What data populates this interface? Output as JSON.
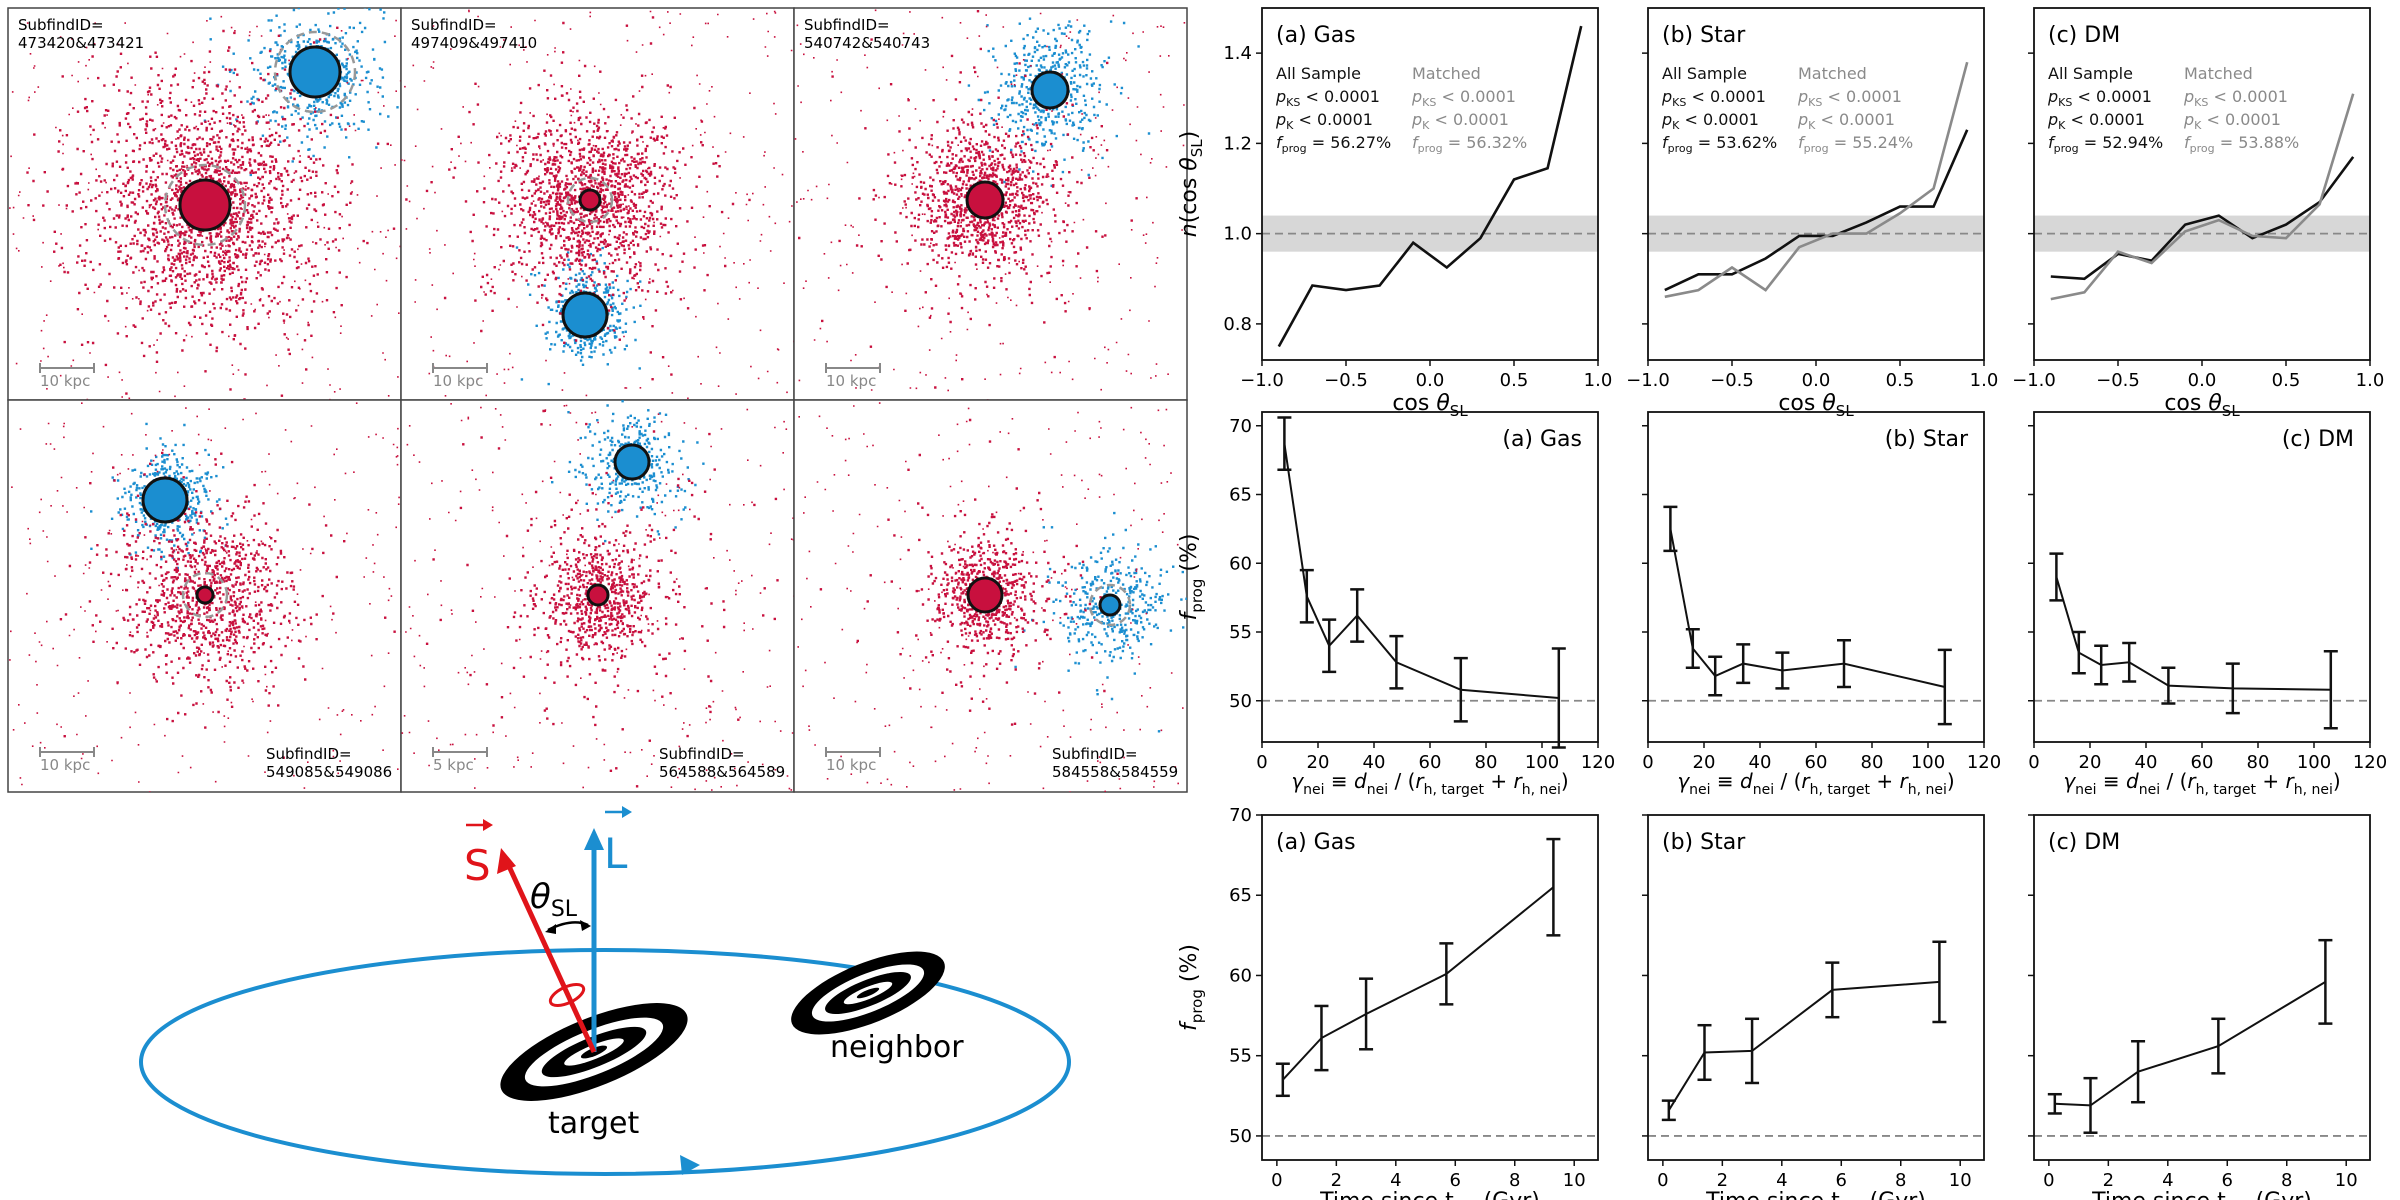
{
  "colors": {
    "target": "#c8103e",
    "neighbor": "#1b8ed0",
    "matched": "#8a8a8a",
    "band": "#d3d3d3"
  },
  "snapshots": [
    {
      "id": "SubfindID=",
      "ids": "473420&473421",
      "scale": "10 kpc",
      "label_pos": "top"
    },
    {
      "id": "SubfindID=",
      "ids": "497409&497410",
      "scale": "10 kpc",
      "label_pos": "top"
    },
    {
      "id": "SubfindID=",
      "ids": "540742&540743",
      "scale": "10 kpc",
      "label_pos": "top"
    },
    {
      "id": "SubfindID=",
      "ids": "549085&549086",
      "scale": "10 kpc",
      "label_pos": "bottom"
    },
    {
      "id": "SubfindID=",
      "ids": "564588&564589",
      "scale": "5 kpc",
      "label_pos": "bottom"
    },
    {
      "id": "SubfindID=",
      "ids": "584558&584559",
      "scale": "10 kpc",
      "label_pos": "bottom"
    }
  ],
  "schematic": {
    "spin_label": "S",
    "angular_label": "L",
    "angle_label": "θ",
    "angle_sub": "SL",
    "target_label": "target",
    "neighbor_label": "neighbor"
  },
  "chart_data": [
    {
      "type": "line",
      "row": "distribution",
      "xlabel": "cos θSL",
      "ylabel": "n(cos θSL)",
      "xlim": [
        -1.0,
        1.0
      ],
      "ylim": [
        0.72,
        1.5
      ],
      "xticks": [
        -1.0,
        -0.5,
        0.0,
        0.5,
        1.0
      ],
      "yticks": [
        0.8,
        1.0,
        1.2,
        1.4
      ],
      "reference": 1.0,
      "band": [
        0.96,
        1.04
      ],
      "x": [
        -0.9,
        -0.7,
        -0.5,
        -0.3,
        -0.1,
        0.1,
        0.3,
        0.5,
        0.7,
        0.9
      ],
      "panels": [
        {
          "title": "(a) Gas",
          "stats": {
            "all": {
              "header": "All Sample",
              "ks": "p_KS < 0.0001",
              "k": "p_K < 0.0001",
              "f": "f_prog = 56.27%"
            },
            "matched": {
              "header": "Matched",
              "ks": "p_KS < 0.0001",
              "k": "p_K < 0.0001",
              "f": "f_prog = 56.32%"
            }
          },
          "series": [
            {
              "name": "All Sample",
              "values": [
                0.75,
                0.885,
                0.875,
                0.885,
                0.98,
                0.925,
                0.99,
                1.12,
                1.145,
                1.46
              ]
            }
          ]
        },
        {
          "title": "(b) Star",
          "stats": {
            "all": {
              "header": "All Sample",
              "ks": "p_KS < 0.0001",
              "k": "p_K < 0.0001",
              "f": "f_prog = 53.62%"
            },
            "matched": {
              "header": "Matched",
              "ks": "p_KS < 0.0001",
              "k": "p_K < 0.0001",
              "f": "f_prog = 55.24%"
            }
          },
          "series": [
            {
              "name": "All Sample",
              "values": [
                0.875,
                0.91,
                0.91,
                0.945,
                0.995,
                0.995,
                1.025,
                1.06,
                1.06,
                1.23
              ]
            },
            {
              "name": "Matched",
              "values": [
                0.86,
                0.875,
                0.925,
                0.875,
                0.97,
                1.0,
                1.0,
                1.045,
                1.1,
                1.38
              ]
            }
          ]
        },
        {
          "title": "(c) DM",
          "stats": {
            "all": {
              "header": "All Sample",
              "ks": "p_KS < 0.0001",
              "k": "p_K < 0.0001",
              "f": "f_prog = 52.94%"
            },
            "matched": {
              "header": "Matched",
              "ks": "p_KS < 0.0001",
              "k": "p_K < 0.0001",
              "f": "f_prog = 53.88%"
            }
          },
          "series": [
            {
              "name": "All Sample",
              "values": [
                0.905,
                0.9,
                0.955,
                0.94,
                1.02,
                1.04,
                0.99,
                1.02,
                1.07,
                1.17
              ]
            },
            {
              "name": "Matched",
              "values": [
                0.855,
                0.87,
                0.96,
                0.935,
                1.005,
                1.03,
                0.995,
                0.99,
                1.065,
                1.31
              ]
            }
          ]
        }
      ]
    },
    {
      "type": "line",
      "row": "distance",
      "xlabel": "γnei ≡ dnei / (rh,target + rh,nei)",
      "ylabel": "fprog (%)",
      "xlim": [
        0,
        120
      ],
      "ylim": [
        47,
        71
      ],
      "xticks": [
        0,
        20,
        40,
        60,
        80,
        100,
        120
      ],
      "yticks": [
        50,
        55,
        60,
        65,
        70
      ],
      "reference": 50,
      "panels": [
        {
          "title": "(a) Gas",
          "x": [
            8,
            16,
            24,
            34,
            48,
            71,
            106
          ],
          "values": [
            68.7,
            57.6,
            54.0,
            56.2,
            52.8,
            50.8,
            50.2
          ],
          "errors": [
            1.9,
            1.9,
            1.9,
            1.9,
            1.9,
            2.3,
            3.6
          ]
        },
        {
          "title": "(b) Star",
          "x": [
            8,
            16,
            24,
            34,
            48,
            70,
            106
          ],
          "values": [
            62.5,
            53.8,
            51.8,
            52.7,
            52.2,
            52.7,
            51.0
          ],
          "errors": [
            1.6,
            1.4,
            1.4,
            1.4,
            1.3,
            1.7,
            2.7
          ]
        },
        {
          "title": "(c) DM",
          "x": [
            8,
            16,
            24,
            34,
            48,
            71,
            106
          ],
          "values": [
            59.0,
            53.5,
            52.6,
            52.8,
            51.1,
            50.9,
            50.8
          ],
          "errors": [
            1.7,
            1.5,
            1.4,
            1.4,
            1.3,
            1.8,
            2.8
          ]
        }
      ]
    },
    {
      "type": "line",
      "row": "time",
      "xlabel": "Time since tnei (Gyr)",
      "ylabel": "fprog (%)",
      "xlim": [
        -0.5,
        10.8
      ],
      "ylim": [
        48.5,
        70
      ],
      "xticks": [
        0,
        2,
        4,
        6,
        8,
        10
      ],
      "yticks": [
        50,
        55,
        60,
        65,
        70
      ],
      "reference": 50,
      "panels": [
        {
          "title": "(a) Gas",
          "x": [
            0.2,
            1.5,
            3.0,
            5.7,
            9.3
          ],
          "values": [
            53.5,
            56.1,
            57.6,
            60.1,
            65.5
          ],
          "errors": [
            1.0,
            2.0,
            2.2,
            1.9,
            3.0
          ]
        },
        {
          "title": "(b) Star",
          "x": [
            0.2,
            1.4,
            3.0,
            5.7,
            9.3
          ],
          "values": [
            51.6,
            55.2,
            55.3,
            59.1,
            59.6
          ],
          "errors": [
            0.6,
            1.7,
            2.0,
            1.7,
            2.5
          ]
        },
        {
          "title": "(c) DM",
          "x": [
            0.2,
            1.4,
            3.0,
            5.7,
            9.3
          ],
          "values": [
            52.0,
            51.9,
            54.0,
            55.6,
            59.6
          ],
          "errors": [
            0.6,
            1.7,
            1.9,
            1.7,
            2.6
          ]
        }
      ]
    }
  ]
}
